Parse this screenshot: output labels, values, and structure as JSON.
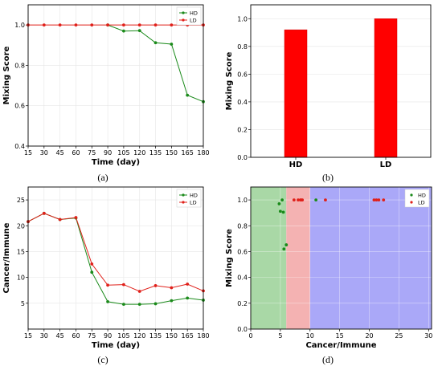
{
  "colors": {
    "hd": "#1a8a1a",
    "ld": "#e0201a",
    "bar": "#ff0000",
    "region_green": "#a9d8a6",
    "region_red": "#f4b2b2",
    "region_blue": "#aaa8f8"
  },
  "panels": [
    {
      "id": "a",
      "label": "(a)"
    },
    {
      "id": "b",
      "label": "(b)"
    },
    {
      "id": "c",
      "label": "(c)"
    },
    {
      "id": "d",
      "label": "(d)"
    }
  ],
  "chart_data": [
    {
      "panel": "a",
      "type": "line",
      "xlabel": "Time (day)",
      "ylabel": "Mixing Score",
      "xlim": [
        15,
        180
      ],
      "ylim": [
        0.4,
        1.1
      ],
      "x": [
        15,
        30,
        45,
        60,
        75,
        90,
        105,
        120,
        135,
        150,
        165,
        180
      ],
      "x_ticks": [
        "15",
        "30",
        "45",
        "60",
        "75",
        "90",
        "105",
        "120",
        "135",
        "150",
        "165",
        "180"
      ],
      "y_ticks": [
        "0.4",
        "0.6",
        "0.8",
        "1.0"
      ],
      "legend_position": "top-right",
      "series": [
        {
          "name": "HD",
          "color": "hd",
          "x": [
            90,
            105,
            120,
            135,
            150,
            165,
            180
          ],
          "values": [
            1.0,
            0.97,
            0.972,
            0.912,
            0.905,
            0.652,
            0.62
          ]
        },
        {
          "name": "LD",
          "color": "ld",
          "x": [
            15,
            30,
            45,
            60,
            75,
            90,
            105,
            120,
            135,
            150,
            165,
            180
          ],
          "values": [
            1.0,
            1.0,
            1.0,
            1.0,
            1.0,
            1.0,
            1.0,
            1.0,
            1.0,
            1.0,
            1.0,
            1.0
          ]
        }
      ],
      "grid": true
    },
    {
      "panel": "b",
      "type": "bar",
      "categories": [
        "HD",
        "LD"
      ],
      "values": [
        0.92,
        1.0
      ],
      "xlabel": "",
      "ylabel": "Mixing Score",
      "ylim": [
        0.0,
        1.1
      ],
      "y_ticks": [
        "0.0",
        "0.2",
        "0.4",
        "0.6",
        "0.8",
        "1.0"
      ],
      "grid": true
    },
    {
      "panel": "c",
      "type": "line",
      "xlabel": "Time (day)",
      "ylabel": "Cancer/Immune",
      "xlim": [
        15,
        180
      ],
      "ylim": [
        0,
        27.5
      ],
      "x_ticks": [
        "15",
        "30",
        "45",
        "60",
        "75",
        "90",
        "105",
        "120",
        "135",
        "150",
        "165",
        "180"
      ],
      "y_ticks": [
        "5",
        "10",
        "15",
        "20",
        "25"
      ],
      "legend_position": "top-right",
      "series": [
        {
          "name": "HD",
          "color": "hd",
          "x": [
            15,
            30,
            45,
            60,
            75,
            90,
            105,
            120,
            135,
            150,
            165,
            180
          ],
          "values": [
            20.8,
            22.4,
            21.2,
            21.5,
            11.0,
            5.3,
            4.8,
            4.8,
            4.9,
            5.5,
            6.0,
            5.6
          ]
        },
        {
          "name": "LD",
          "color": "ld",
          "x": [
            15,
            30,
            45,
            60,
            75,
            90,
            105,
            120,
            135,
            150,
            165,
            180
          ],
          "values": [
            20.8,
            22.4,
            21.2,
            21.6,
            12.6,
            8.5,
            8.6,
            7.3,
            8.4,
            8.0,
            8.7,
            7.4
          ]
        }
      ],
      "grid": true
    },
    {
      "panel": "d",
      "type": "scatter",
      "xlabel": "Cancer/Immune",
      "ylabel": "Mixing Score",
      "xlim": [
        0,
        30.5
      ],
      "ylim": [
        0.0,
        1.1
      ],
      "x_ticks": [
        "0",
        "5",
        "10",
        "15",
        "20",
        "25",
        "30"
      ],
      "y_ticks": [
        "0.0",
        "0.2",
        "0.4",
        "0.6",
        "0.8",
        "1.0"
      ],
      "legend_position": "top-right",
      "regions": [
        {
          "x_from": 0,
          "x_to": 6,
          "color": "region_green"
        },
        {
          "x_from": 6,
          "x_to": 10,
          "color": "region_red"
        },
        {
          "x_from": 10,
          "x_to": 30.5,
          "color": "region_blue"
        }
      ],
      "series": [
        {
          "name": "HD",
          "color": "hd",
          "points": [
            [
              4.8,
              0.97
            ],
            [
              5.3,
              1.0
            ],
            [
              5.0,
              0.912
            ],
            [
              5.5,
              0.905
            ],
            [
              5.6,
              0.62
            ],
            [
              6.0,
              0.652
            ],
            [
              11.0,
              1.0
            ]
          ]
        },
        {
          "name": "LD",
          "color": "ld",
          "points": [
            [
              7.3,
              1.0
            ],
            [
              8.0,
              1.0
            ],
            [
              8.4,
              1.0
            ],
            [
              8.5,
              1.0
            ],
            [
              8.7,
              1.0
            ],
            [
              12.6,
              1.0
            ],
            [
              20.8,
              1.0
            ],
            [
              21.2,
              1.0
            ],
            [
              21.6,
              1.0
            ],
            [
              22.4,
              1.0
            ]
          ]
        }
      ],
      "grid": true
    }
  ]
}
